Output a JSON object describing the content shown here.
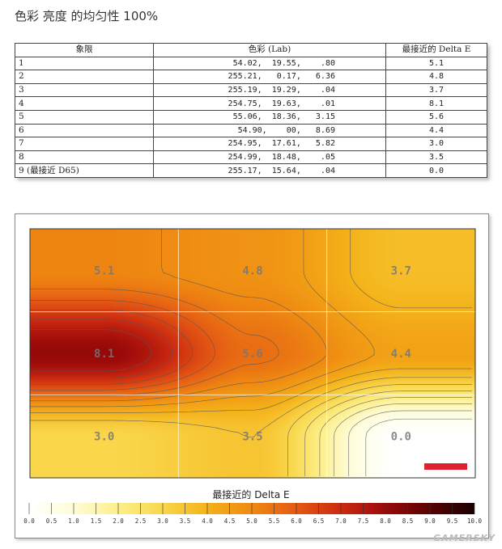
{
  "page_title": "色彩 亮度 的均匀性 100%",
  "table": {
    "headers": [
      "象限",
      "色彩 (Lab)",
      "最接近的 Delta E"
    ],
    "rows": [
      {
        "quadrant": "1",
        "lab": "54.02,  19.55,    .80",
        "de": "5.1"
      },
      {
        "quadrant": "2",
        "lab": "255.21,   0.17,   6.36",
        "de": "4.8"
      },
      {
        "quadrant": "3",
        "lab": "255.19,  19.29,    .04",
        "de": "3.7"
      },
      {
        "quadrant": "4",
        "lab": "254.75,  19.63,    .01",
        "de": "8.1"
      },
      {
        "quadrant": "5",
        "lab": "55.06,  18.36,   3.15",
        "de": "5.6"
      },
      {
        "quadrant": "6",
        "lab": "54.90,    00,   8.69",
        "de": "4.4"
      },
      {
        "quadrant": "7",
        "lab": "254.95,  17.61,   5.82",
        "de": "3.0"
      },
      {
        "quadrant": "8",
        "lab": "254.99,  18.48,    .05",
        "de": "3.5"
      },
      {
        "quadrant": "9 (最接近 D65)",
        "lab": "255.17,  15.64,    .04",
        "de": "0.0"
      }
    ]
  },
  "chart_data": {
    "type": "heatmap",
    "grid_rows": 3,
    "grid_cols": 3,
    "values": [
      [
        5.1,
        4.8,
        3.7
      ],
      [
        8.1,
        5.6,
        4.4
      ],
      [
        3.0,
        3.5,
        0.0
      ]
    ],
    "cell_labels": [
      [
        "5.1",
        "4.8",
        "3.7"
      ],
      [
        "8.1",
        "5.6",
        "4.4"
      ],
      [
        "3.0",
        "3.5",
        "0.0"
      ]
    ],
    "colorbar_title": "最接近的 Delta E",
    "colorbar_range": [
      0,
      10
    ],
    "colorbar_ticks": [
      "0.0",
      "0.5",
      "1.0",
      "1.5",
      "2.0",
      "2.5",
      "3.0",
      "3.5",
      "4.0",
      "4.5",
      "5.0",
      "5.5",
      "6.0",
      "6.5",
      "7.0",
      "7.5",
      "8.0",
      "8.5",
      "9.0",
      "9.5",
      "10.0"
    ],
    "color_stops": [
      [
        0,
        "#ffffff"
      ],
      [
        1,
        "#fefcd6"
      ],
      [
        2,
        "#fcef8a"
      ],
      [
        3,
        "#f9d64a"
      ],
      [
        4,
        "#f4b219"
      ],
      [
        5,
        "#ef8a12"
      ],
      [
        6,
        "#e45a14"
      ],
      [
        7,
        "#cc2a10"
      ],
      [
        8,
        "#9c0a0a"
      ],
      [
        9,
        "#5a0202"
      ],
      [
        10,
        "#1a0000"
      ]
    ],
    "marker_color": "#e0202c",
    "grid_on": true
  },
  "watermark": "GAMERSKY"
}
